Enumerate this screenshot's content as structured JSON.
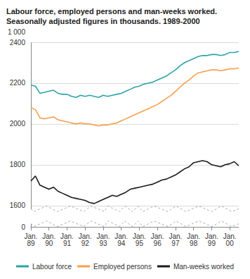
{
  "chart_data": {
    "type": "line",
    "title": "Labour force, employed persons and man-weeks worked. Seasonally adjusted figures in thousands. 1989-2000",
    "y_label": "1 000",
    "categories": [
      "Jan. 89",
      null,
      null,
      null,
      "Jan. 90",
      null,
      null,
      null,
      "Jan. 91",
      null,
      null,
      null,
      "Jan. 92",
      null,
      null,
      null,
      "Jan. 93",
      null,
      null,
      null,
      "Jan. 94",
      null,
      null,
      null,
      "Jan. 95",
      null,
      null,
      null,
      "Jan. 96",
      null,
      null,
      null,
      "Jan. 97",
      null,
      null,
      null,
      "Jan. 98",
      null,
      null,
      null,
      "Jan. 99",
      null,
      null,
      null,
      "Jan. 00",
      null,
      null
    ],
    "series": [
      {
        "name": "Labour force",
        "color": "#2ba3a8",
        "values": [
          2190,
          2185,
          2150,
          2155,
          2160,
          2165,
          2150,
          2145,
          2145,
          2135,
          2130,
          2140,
          2135,
          2140,
          2135,
          2130,
          2140,
          2135,
          2140,
          2145,
          2150,
          2160,
          2170,
          2180,
          2185,
          2195,
          2200,
          2205,
          2215,
          2225,
          2235,
          2250,
          2265,
          2285,
          2300,
          2310,
          2320,
          2330,
          2335,
          2335,
          2340,
          2340,
          2335,
          2340,
          2350,
          2350,
          2355
        ]
      },
      {
        "name": "Employed persons",
        "color": "#f6a04d",
        "values": [
          2080,
          2070,
          2030,
          2025,
          2030,
          2035,
          2020,
          2015,
          2010,
          2005,
          2000,
          2005,
          2000,
          2000,
          1995,
          1990,
          1995,
          1995,
          2000,
          2005,
          2015,
          2025,
          2035,
          2045,
          2055,
          2065,
          2075,
          2085,
          2095,
          2110,
          2125,
          2140,
          2160,
          2180,
          2200,
          2215,
          2235,
          2250,
          2255,
          2260,
          2265,
          2265,
          2260,
          2265,
          2270,
          2270,
          2275
        ]
      },
      {
        "name": "Man-weeks worked",
        "color": "#1a1a1a",
        "values": [
          1720,
          1745,
          1700,
          1690,
          1680,
          1690,
          1670,
          1660,
          1650,
          1640,
          1635,
          1630,
          1625,
          1615,
          1610,
          1620,
          1630,
          1640,
          1650,
          1645,
          1655,
          1665,
          1680,
          1685,
          1690,
          1695,
          1700,
          1705,
          1715,
          1725,
          1730,
          1740,
          1750,
          1765,
          1780,
          1790,
          1810,
          1815,
          1820,
          1815,
          1800,
          1795,
          1790,
          1800,
          1805,
          1815,
          1795
        ]
      }
    ],
    "ylim": [
      0,
      2400
    ],
    "yticks": [
      0,
      1600,
      1800,
      2000,
      2200,
      2400
    ],
    "grid": true,
    "legend": "bottom"
  }
}
